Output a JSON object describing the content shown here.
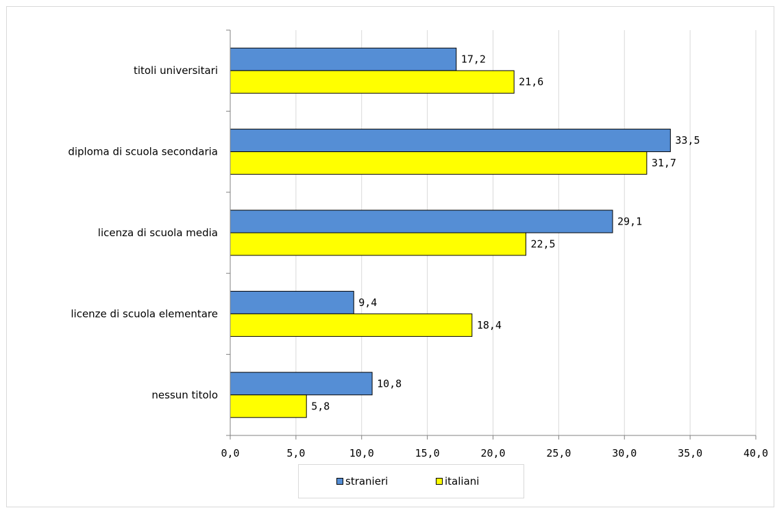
{
  "chart_data": {
    "type": "bar",
    "orientation": "horizontal",
    "categories": [
      "titoli universitari",
      "diploma di scuola secondaria",
      "licenza di scuola media",
      "licenze di scuola elementare",
      "nessun titolo"
    ],
    "series": [
      {
        "name": "stranieri",
        "color": "#558ed5",
        "values": [
          17.2,
          33.5,
          29.1,
          9.4,
          10.8
        ],
        "labels": [
          "17,2",
          "33,5",
          "29,1",
          "9,4",
          "10,8"
        ]
      },
      {
        "name": "italiani",
        "color": "#ffff00",
        "values": [
          21.6,
          31.7,
          22.5,
          18.4,
          5.8
        ],
        "labels": [
          "21,6",
          "31,7",
          "22,5",
          "18,4",
          "5,8"
        ]
      }
    ],
    "xlim": [
      0,
      40
    ],
    "ticks": [
      0,
      5,
      10,
      15,
      20,
      25,
      30,
      35,
      40
    ],
    "tick_labels": [
      "0,0",
      "5,0",
      "10,0",
      "15,0",
      "20,0",
      "25,0",
      "30,0",
      "35,0",
      "40,0"
    ],
    "grid": "vertical",
    "legend_position": "bottom"
  }
}
